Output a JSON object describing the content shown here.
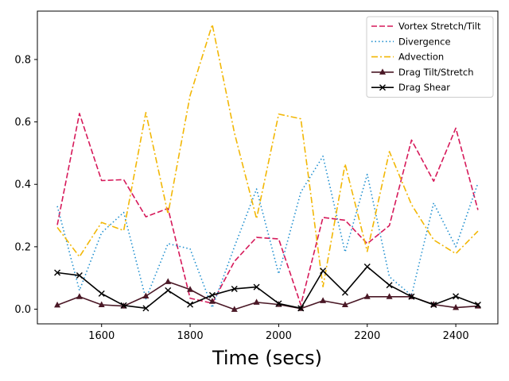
{
  "chart_data": {
    "type": "line",
    "title": "",
    "xlabel": "Time (secs)",
    "ylabel": "",
    "xlim": [
      1455,
      2495
    ],
    "ylim": [
      -0.047,
      0.955
    ],
    "xticks": [
      1600,
      1800,
      2000,
      2200,
      2400
    ],
    "yticks": [
      0.0,
      0.2,
      0.4,
      0.6,
      0.8
    ],
    "ytick_labels": [
      "0.0",
      "0.2",
      "0.4",
      "0.6",
      "0.8"
    ],
    "grid": false,
    "legend_position": "top-right",
    "x": [
      1500,
      1550,
      1600,
      1650,
      1700,
      1750,
      1800,
      1850,
      1900,
      1950,
      2000,
      2050,
      2100,
      2150,
      2200,
      2250,
      2300,
      2350,
      2400,
      2450
    ],
    "series": [
      {
        "name": "Vortex Stretch/Tilt",
        "color": "#d6195a",
        "dash": "dashed",
        "marker": "none",
        "values": [
          0.27,
          0.627,
          0.412,
          0.415,
          0.296,
          0.323,
          0.035,
          0.019,
          0.153,
          0.23,
          0.225,
          0.014,
          0.294,
          0.285,
          0.21,
          0.268,
          0.542,
          0.41,
          0.58,
          0.318
        ]
      },
      {
        "name": "Divergence",
        "color": "#1f8fcf",
        "dash": "dotted",
        "marker": "none",
        "values": [
          0.33,
          0.06,
          0.245,
          0.31,
          0.033,
          0.21,
          0.193,
          0.005,
          0.2,
          0.385,
          0.113,
          0.375,
          0.49,
          0.183,
          0.432,
          0.104,
          0.044,
          0.34,
          0.2,
          0.404
        ]
      },
      {
        "name": "Advection",
        "color": "#f2b705",
        "dash": "dashdot",
        "marker": "none",
        "values": [
          0.262,
          0.168,
          0.278,
          0.252,
          0.63,
          0.305,
          0.685,
          0.912,
          0.565,
          0.29,
          0.625,
          0.61,
          0.072,
          0.465,
          0.185,
          0.505,
          0.335,
          0.222,
          0.178,
          0.25
        ]
      },
      {
        "name": "Drag Tilt/Stretch",
        "color": "#4a1826",
        "dash": "solid",
        "marker": "triangle",
        "values": [
          0.013,
          0.04,
          0.014,
          0.01,
          0.042,
          0.088,
          0.063,
          0.025,
          -0.001,
          0.022,
          0.015,
          0.002,
          0.027,
          0.014,
          0.04,
          0.04,
          0.04,
          0.015,
          0.005,
          0.01
        ]
      },
      {
        "name": "Drag Shear",
        "color": "#000000",
        "dash": "solid",
        "marker": "x",
        "values": [
          0.117,
          0.108,
          0.05,
          0.012,
          0.003,
          0.06,
          0.015,
          0.045,
          0.065,
          0.071,
          0.018,
          0.003,
          0.123,
          0.053,
          0.136,
          0.077,
          0.04,
          0.014,
          0.041,
          0.014
        ]
      }
    ]
  }
}
